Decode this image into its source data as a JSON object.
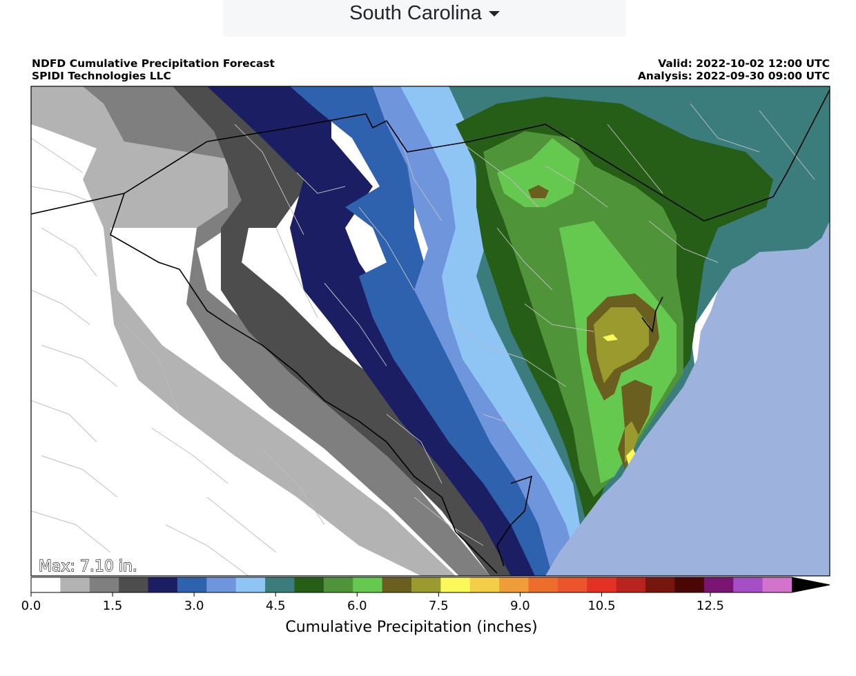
{
  "state_selector": {
    "label": "South Carolina"
  },
  "header": {
    "title": "NDFD Cumulative Precipitation Forecast",
    "org": "SPIDI Technologies LLC",
    "valid": "Valid: 2022-10-02 12:00 UTC",
    "analysis": "Analysis: 2022-09-30 09:00 UTC"
  },
  "map": {
    "max_label": "Max: 7.10 in.",
    "max_value": 7.1,
    "ocean_color": "#9db3dd",
    "land_color": "#ffffff"
  },
  "colorbar": {
    "label": "Cumulative Precipitation (inches)",
    "min": 0.0,
    "max": 14.0,
    "step": 0.5,
    "extend": "max",
    "tick_labels": [
      "0.0",
      "1.5",
      "3.0",
      "4.5",
      "6.0",
      "7.5",
      "9.0",
      "10.5",
      "12.5"
    ],
    "tick_values": [
      0.0,
      1.5,
      3.0,
      4.5,
      6.0,
      7.5,
      9.0,
      10.5,
      12.5
    ],
    "colors": [
      "#ffffff",
      "#b3b3b3",
      "#7f7f7f",
      "#4d4d4d",
      "#1b1e63",
      "#2e62ae",
      "#6f95dc",
      "#8fc5f5",
      "#3b7d7c",
      "#275e17",
      "#4f9438",
      "#66c94f",
      "#6a5f1f",
      "#9a9a2f",
      "#fbf95a",
      "#f3ce47",
      "#ef9d38",
      "#ec6d2c",
      "#ea552b",
      "#e33223",
      "#b8251e",
      "#77150f",
      "#4a0706",
      "#7b1574",
      "#a54fc6",
      "#d373cb"
    ],
    "extend_color": "#000000"
  }
}
